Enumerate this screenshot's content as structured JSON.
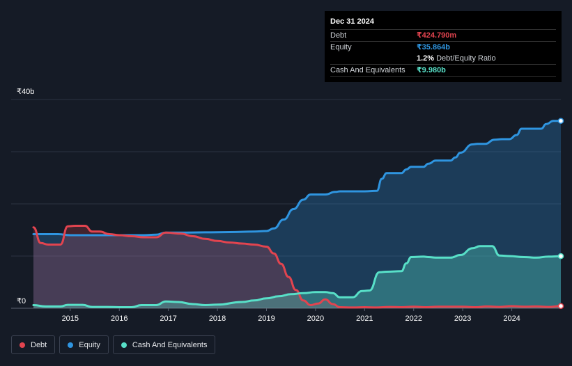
{
  "tooltip": {
    "date": "Dec 31 2024",
    "debt_label": "Debt",
    "debt_value": "₹424.790m",
    "equity_label": "Equity",
    "equity_value": "₹35.864b",
    "ratio_value": "1.2%",
    "ratio_label": "Debt/Equity Ratio",
    "cash_label": "Cash And Equivalents",
    "cash_value": "₹9.980b"
  },
  "colors": {
    "debt": "#e2444f",
    "equity": "#2f95e0",
    "cash": "#58e0c8",
    "background": "#151b26"
  },
  "legend": [
    {
      "name": "Debt",
      "color": "#e2444f"
    },
    {
      "name": "Equity",
      "color": "#2f95e0"
    },
    {
      "name": "Cash And Equivalents",
      "color": "#58e0c8"
    }
  ],
  "chart_data": {
    "type": "area",
    "y_top_label": "₹40b",
    "y_bottom_label": "₹0",
    "ylim": [
      0,
      40
    ],
    "xlim": [
      2014.25,
      2025.0
    ],
    "x_ticks": [
      "2015",
      "2016",
      "2017",
      "2018",
      "2019",
      "2020",
      "2021",
      "2022",
      "2023",
      "2024"
    ],
    "grid": true,
    "series": [
      {
        "name": "Debt",
        "x": [
          2014.25,
          2014.4,
          2014.55,
          2014.8,
          2014.95,
          2015.1,
          2015.3,
          2015.45,
          2015.6,
          2015.8,
          2016.0,
          2016.25,
          2016.5,
          2016.75,
          2016.95,
          2017.25,
          2017.5,
          2017.75,
          2018.0,
          2018.25,
          2018.5,
          2018.75,
          2019.0,
          2019.15,
          2019.3,
          2019.45,
          2019.6,
          2019.75,
          2019.9,
          2020.05,
          2020.2,
          2020.35,
          2020.5,
          2020.75,
          2021.0,
          2021.25,
          2021.5,
          2021.75,
          2022.0,
          2022.25,
          2022.5,
          2022.75,
          2023.0,
          2023.25,
          2023.5,
          2023.75,
          2024.0,
          2024.25,
          2024.5,
          2024.75,
          2025.0
        ],
        "values": [
          15.5,
          12.5,
          12.2,
          12.2,
          15.7,
          15.8,
          15.8,
          14.7,
          14.7,
          14.2,
          14.0,
          13.8,
          13.6,
          13.6,
          14.5,
          14.3,
          13.8,
          13.3,
          12.9,
          12.6,
          12.4,
          12.2,
          11.8,
          10.5,
          8.5,
          6.0,
          3.5,
          1.5,
          0.6,
          0.9,
          1.7,
          0.8,
          0.2,
          0.15,
          0.2,
          0.15,
          0.25,
          0.2,
          0.3,
          0.2,
          0.3,
          0.3,
          0.3,
          0.2,
          0.35,
          0.25,
          0.4,
          0.3,
          0.35,
          0.25,
          0.42
        ]
      },
      {
        "name": "Equity",
        "x": [
          2014.25,
          2014.75,
          2015.0,
          2015.5,
          2016.0,
          2016.5,
          2016.75,
          2016.95,
          2017.25,
          2017.75,
          2018.25,
          2018.75,
          2019.0,
          2019.15,
          2019.35,
          2019.55,
          2019.75,
          2019.9,
          2020.05,
          2020.2,
          2020.4,
          2020.5,
          2020.75,
          2021.0,
          2021.25,
          2021.35,
          2021.45,
          2021.75,
          2021.85,
          2021.95,
          2022.2,
          2022.3,
          2022.45,
          2022.75,
          2022.85,
          2022.95,
          2023.2,
          2023.3,
          2023.45,
          2023.65,
          2023.8,
          2023.95,
          2024.1,
          2024.2,
          2024.35,
          2024.6,
          2024.7,
          2024.85,
          2025.0
        ],
        "values": [
          14.2,
          14.2,
          14.0,
          14.0,
          14.0,
          14.0,
          14.1,
          14.5,
          14.5,
          14.55,
          14.6,
          14.7,
          14.8,
          15.3,
          17.0,
          19.0,
          20.8,
          21.8,
          21.8,
          21.8,
          22.3,
          22.4,
          22.4,
          22.4,
          22.5,
          24.8,
          25.9,
          25.9,
          26.6,
          27.1,
          27.1,
          27.7,
          28.3,
          28.3,
          28.9,
          29.8,
          31.4,
          31.5,
          31.5,
          32.3,
          32.4,
          32.4,
          33.2,
          34.4,
          34.4,
          34.4,
          35.3,
          35.9,
          35.9
        ]
      },
      {
        "name": "Cash And Equivalents",
        "x": [
          2014.25,
          2014.5,
          2014.8,
          2014.95,
          2015.25,
          2015.45,
          2015.75,
          2016.0,
          2016.25,
          2016.45,
          2016.75,
          2016.95,
          2017.2,
          2017.5,
          2017.75,
          2018.0,
          2018.5,
          2018.75,
          2019.0,
          2019.25,
          2019.5,
          2019.75,
          2020.0,
          2020.2,
          2020.35,
          2020.5,
          2020.75,
          2020.95,
          2021.1,
          2021.3,
          2021.45,
          2021.75,
          2021.85,
          2021.95,
          2022.2,
          2022.3,
          2022.45,
          2022.75,
          2022.95,
          2023.2,
          2023.35,
          2023.5,
          2023.6,
          2023.75,
          2023.95,
          2024.25,
          2024.5,
          2024.75,
          2025.0
        ],
        "values": [
          0.6,
          0.35,
          0.35,
          0.65,
          0.65,
          0.25,
          0.25,
          0.2,
          0.2,
          0.6,
          0.6,
          1.3,
          1.2,
          0.8,
          0.6,
          0.7,
          1.2,
          1.5,
          1.9,
          2.3,
          2.7,
          2.9,
          3.1,
          3.1,
          2.9,
          2.1,
          2.1,
          3.3,
          3.4,
          6.9,
          7.0,
          7.1,
          8.6,
          9.8,
          9.9,
          9.8,
          9.7,
          9.7,
          10.2,
          11.5,
          11.9,
          11.9,
          11.9,
          10.1,
          10.0,
          9.8,
          9.7,
          9.9,
          9.98
        ]
      }
    ]
  }
}
